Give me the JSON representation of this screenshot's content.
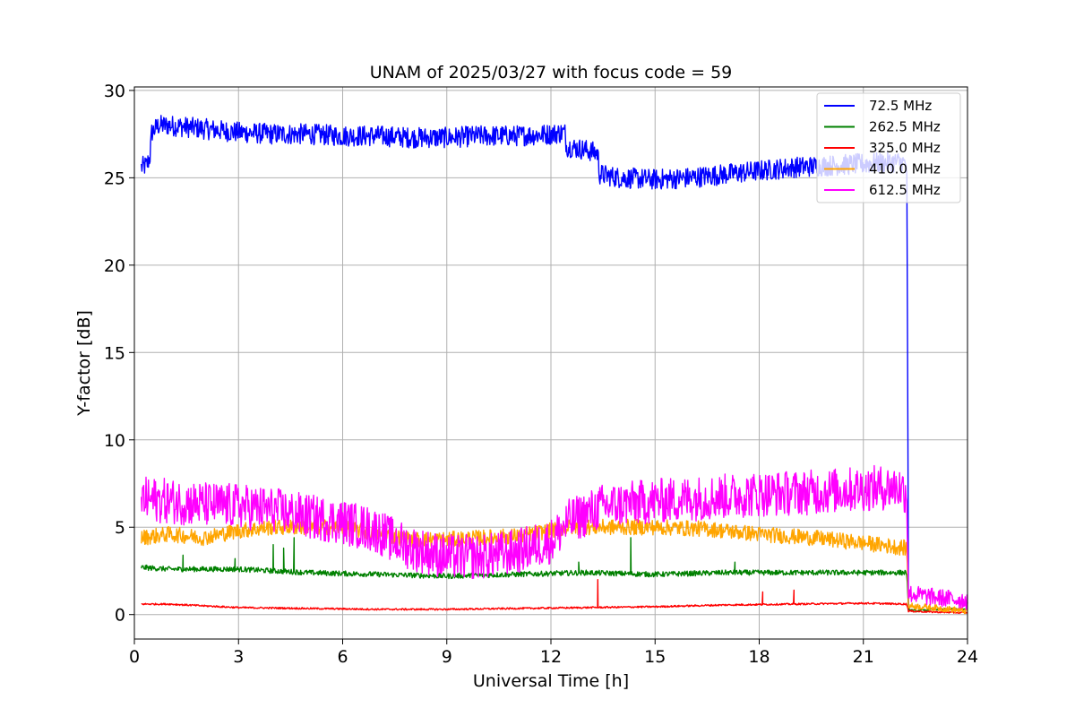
{
  "chart_data": {
    "type": "line",
    "title": "UNAM of 2025/03/27 with focus code = 59",
    "xlabel": "Universal Time [h]",
    "ylabel": "Y-factor [dB]",
    "xlim": [
      0,
      24
    ],
    "ylim": [
      -1.4,
      30.2
    ],
    "xticks": [
      0,
      3,
      6,
      9,
      12,
      15,
      18,
      21,
      24
    ],
    "xtick_labels": [
      "0",
      "3",
      "6",
      "9",
      "12",
      "15",
      "18",
      "21",
      "24"
    ],
    "yticks": [
      0,
      5,
      10,
      15,
      20,
      25,
      30
    ],
    "ytick_labels": [
      "0",
      "5",
      "10",
      "15",
      "20",
      "25",
      "30"
    ],
    "grid": true,
    "legend_position": "top-right",
    "series": [
      {
        "name": " 72.5 MHz",
        "color": "#0000ff",
        "noise": 0.6,
        "x": [
          0.2,
          0.35,
          0.45,
          0.5,
          0.7,
          1.0,
          2.0,
          3.0,
          4.0,
          5.0,
          6.0,
          7.0,
          8.0,
          9.0,
          10.0,
          11.0,
          12.0,
          12.4,
          12.45,
          13.0,
          13.35,
          13.4,
          14.0,
          15.0,
          16.0,
          17.0,
          18.0,
          19.0,
          20.0,
          21.0,
          22.0,
          22.25,
          22.28,
          22.3
        ],
        "y": [
          25.6,
          25.7,
          26.2,
          27.6,
          28.0,
          28.0,
          27.8,
          27.6,
          27.5,
          27.5,
          27.4,
          27.4,
          27.3,
          27.3,
          27.4,
          27.4,
          27.5,
          27.6,
          26.8,
          26.6,
          26.4,
          25.2,
          25.0,
          24.9,
          25.0,
          25.2,
          25.4,
          25.6,
          25.7,
          25.8,
          25.9,
          25.8,
          12.0,
          0.4
        ]
      },
      {
        "name": "262.5 MHz",
        "color": "#008000",
        "noise": 0.15,
        "x": [
          0.2,
          1.0,
          3.0,
          5.0,
          7.0,
          9.0,
          11.0,
          13.0,
          15.0,
          17.0,
          19.0,
          21.0,
          22.25,
          22.3,
          22.5,
          23.0,
          24.0
        ],
        "y": [
          2.7,
          2.6,
          2.6,
          2.4,
          2.3,
          2.2,
          2.3,
          2.4,
          2.3,
          2.4,
          2.4,
          2.4,
          2.4,
          0.3,
          0.2,
          0.3,
          0.3
        ],
        "spikes": [
          [
            1.4,
            3.4
          ],
          [
            2.9,
            3.2
          ],
          [
            4.0,
            4.0
          ],
          [
            4.3,
            3.8
          ],
          [
            4.6,
            4.4
          ],
          [
            12.8,
            3.0
          ],
          [
            14.3,
            4.4
          ],
          [
            17.3,
            3.0
          ]
        ]
      },
      {
        "name": "325.0 MHz",
        "color": "#ff0000",
        "noise": 0.12,
        "x": [
          0.2,
          1.0,
          3.0,
          5.0,
          7.0,
          9.0,
          11.0,
          13.0,
          15.0,
          17.0,
          19.0,
          21.0,
          22.25,
          22.3,
          23.0,
          24.0
        ],
        "y": [
          0.6,
          0.6,
          0.4,
          0.35,
          0.3,
          0.3,
          0.35,
          0.4,
          0.45,
          0.55,
          0.6,
          0.65,
          0.6,
          0.2,
          0.15,
          0.1
        ],
        "spikes": [
          [
            13.35,
            2.0
          ],
          [
            18.1,
            1.3
          ],
          [
            19.0,
            1.4
          ]
        ]
      },
      {
        "name": "410.0 MHz",
        "color": "#ffa500",
        "noise": 0.45,
        "x": [
          0.2,
          1.0,
          2.0,
          3.0,
          4.0,
          5.0,
          6.0,
          7.0,
          8.0,
          9.0,
          10.0,
          11.0,
          12.0,
          12.5,
          13.5,
          15.0,
          16.5,
          18.0,
          19.5,
          21.0,
          22.25,
          22.3,
          23.0,
          24.0
        ],
        "y": [
          4.4,
          4.6,
          4.4,
          4.8,
          5.0,
          5.0,
          5.0,
          4.6,
          4.3,
          4.3,
          4.4,
          4.5,
          4.8,
          5.0,
          5.0,
          5.0,
          4.9,
          4.6,
          4.4,
          4.1,
          3.8,
          0.5,
          0.4,
          0.2
        ]
      },
      {
        "name": "612.5 MHz",
        "color": "#ff00ff",
        "noise": 1.3,
        "x": [
          0.2,
          1.0,
          2.0,
          3.0,
          4.0,
          5.0,
          6.0,
          7.0,
          7.5,
          8.0,
          9.0,
          10.0,
          11.0,
          12.0,
          12.5,
          13.5,
          15.0,
          16.5,
          18.0,
          19.5,
          21.0,
          22.0,
          22.25,
          22.3,
          23.0,
          24.0
        ],
        "y": [
          6.6,
          6.5,
          6.3,
          6.2,
          6.0,
          5.6,
          5.3,
          4.8,
          4.2,
          3.8,
          3.3,
          3.3,
          3.6,
          4.2,
          5.3,
          6.2,
          6.5,
          6.7,
          6.9,
          7.0,
          7.2,
          7.3,
          7.0,
          1.2,
          1.0,
          0.8
        ]
      }
    ]
  }
}
